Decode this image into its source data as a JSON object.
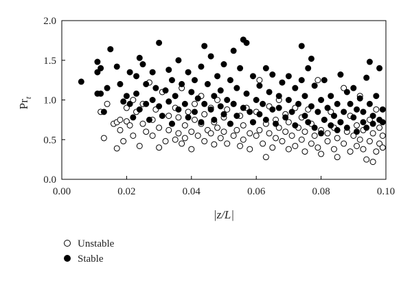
{
  "chart_data": {
    "type": "scatter",
    "title": "",
    "xlabel": "|z/L|",
    "ylabel": "Pr",
    "ylabel_sub": "t",
    "xlim": [
      0.0,
      0.1
    ],
    "ylim": [
      0.0,
      2.0
    ],
    "x_ticks": [
      0.0,
      0.02,
      0.04,
      0.06,
      0.08,
      0.1
    ],
    "x_tick_labels": [
      "0.00",
      "0.02",
      "0.04",
      "0.06",
      "0.08",
      "0.10"
    ],
    "y_ticks": [
      0.0,
      0.5,
      1.0,
      1.5,
      2.0
    ],
    "y_tick_labels": [
      "0.0",
      "0.5",
      "1.0",
      "1.5",
      "2.0"
    ],
    "grid": false,
    "legend_position": "below",
    "series": [
      {
        "name": "Unstable",
        "marker": "open-circle",
        "color": "#000000",
        "points": [
          [
            0.012,
            0.85
          ],
          [
            0.013,
            0.52
          ],
          [
            0.014,
            0.95
          ],
          [
            0.016,
            0.7
          ],
          [
            0.017,
            0.72
          ],
          [
            0.017,
            0.39
          ],
          [
            0.018,
            0.62
          ],
          [
            0.018,
            0.75
          ],
          [
            0.019,
            0.48
          ],
          [
            0.02,
            0.73
          ],
          [
            0.02,
            0.9
          ],
          [
            0.021,
            0.68
          ],
          [
            0.022,
            1.0
          ],
          [
            0.022,
            0.55
          ],
          [
            0.023,
            0.85
          ],
          [
            0.024,
            0.42
          ],
          [
            0.025,
            0.7
          ],
          [
            0.025,
            0.95
          ],
          [
            0.026,
            0.6
          ],
          [
            0.027,
            1.22
          ],
          [
            0.028,
            0.75
          ],
          [
            0.028,
            0.55
          ],
          [
            0.029,
            0.88
          ],
          [
            0.03,
            0.65
          ],
          [
            0.03,
            0.4
          ],
          [
            0.031,
            1.1
          ],
          [
            0.032,
            0.48
          ],
          [
            0.033,
            0.8
          ],
          [
            0.033,
            0.62
          ],
          [
            0.034,
            0.7
          ],
          [
            0.035,
            0.9
          ],
          [
            0.035,
            0.5
          ],
          [
            0.036,
            0.58
          ],
          [
            0.036,
            0.78
          ],
          [
            0.037,
            0.45
          ],
          [
            0.037,
            1.15
          ],
          [
            0.038,
            0.68
          ],
          [
            0.038,
            0.52
          ],
          [
            0.039,
            0.85
          ],
          [
            0.04,
            0.6
          ],
          [
            0.04,
            0.38
          ],
          [
            0.041,
            0.75
          ],
          [
            0.041,
            0.95
          ],
          [
            0.042,
            0.55
          ],
          [
            0.043,
            0.7
          ],
          [
            0.043,
            1.05
          ],
          [
            0.044,
            0.48
          ],
          [
            0.044,
            0.82
          ],
          [
            0.045,
            0.62
          ],
          [
            0.046,
            0.58
          ],
          [
            0.046,
            0.9
          ],
          [
            0.047,
            0.72
          ],
          [
            0.047,
            0.44
          ],
          [
            0.048,
            0.65
          ],
          [
            0.048,
            1.0
          ],
          [
            0.049,
            0.52
          ],
          [
            0.05,
            0.78
          ],
          [
            0.05,
            0.6
          ],
          [
            0.051,
            0.88
          ],
          [
            0.051,
            0.45
          ],
          [
            0.052,
            0.7
          ],
          [
            0.053,
            0.55
          ],
          [
            0.053,
            0.95
          ],
          [
            0.054,
            0.62
          ],
          [
            0.055,
            0.42
          ],
          [
            0.055,
            0.8
          ],
          [
            0.056,
            0.68
          ],
          [
            0.056,
            0.5
          ],
          [
            0.057,
            0.9
          ],
          [
            0.058,
            0.58
          ],
          [
            0.058,
            0.38
          ],
          [
            0.059,
            0.72
          ],
          [
            0.06,
            0.55
          ],
          [
            0.06,
            0.85
          ],
          [
            0.061,
            1.25
          ],
          [
            0.061,
            0.62
          ],
          [
            0.062,
            0.45
          ],
          [
            0.063,
            0.7
          ],
          [
            0.063,
            0.28
          ],
          [
            0.064,
            0.92
          ],
          [
            0.064,
            0.58
          ],
          [
            0.065,
            0.4
          ],
          [
            0.066,
            0.75
          ],
          [
            0.066,
            0.52
          ],
          [
            0.067,
            0.65
          ],
          [
            0.067,
            1.0
          ],
          [
            0.068,
            0.48
          ],
          [
            0.069,
            0.82
          ],
          [
            0.069,
            0.6
          ],
          [
            0.07,
            0.38
          ],
          [
            0.07,
            0.72
          ],
          [
            0.071,
            0.55
          ],
          [
            0.072,
            0.9
          ],
          [
            0.072,
            0.42
          ],
          [
            0.073,
            0.65
          ],
          [
            0.074,
            0.5
          ],
          [
            0.074,
            0.78
          ],
          [
            0.075,
            0.35
          ],
          [
            0.075,
            0.6
          ],
          [
            0.076,
            0.88
          ],
          [
            0.077,
            0.45
          ],
          [
            0.077,
            0.7
          ],
          [
            0.078,
            0.55
          ],
          [
            0.079,
            1.25
          ],
          [
            0.079,
            0.4
          ],
          [
            0.08,
            0.62
          ],
          [
            0.08,
            0.32
          ],
          [
            0.081,
            0.75
          ],
          [
            0.082,
            0.48
          ],
          [
            0.082,
            0.58
          ],
          [
            0.083,
            0.85
          ],
          [
            0.084,
            0.38
          ],
          [
            0.084,
            0.65
          ],
          [
            0.085,
            0.52
          ],
          [
            0.085,
            0.28
          ],
          [
            0.086,
            0.72
          ],
          [
            0.087,
            0.45
          ],
          [
            0.087,
            1.15
          ],
          [
            0.088,
            0.6
          ],
          [
            0.089,
            0.35
          ],
          [
            0.089,
            0.8
          ],
          [
            0.09,
            0.55
          ],
          [
            0.091,
            0.42
          ],
          [
            0.091,
            0.68
          ],
          [
            0.092,
            1.05
          ],
          [
            0.092,
            0.5
          ],
          [
            0.093,
            0.38
          ],
          [
            0.093,
            0.62
          ],
          [
            0.094,
            0.25
          ],
          [
            0.095,
            0.75
          ],
          [
            0.095,
            0.48
          ],
          [
            0.096,
            0.22
          ],
          [
            0.096,
            0.58
          ],
          [
            0.097,
            0.88
          ],
          [
            0.097,
            0.35
          ],
          [
            0.098,
            0.65
          ],
          [
            0.098,
            0.45
          ],
          [
            0.099,
            0.55
          ],
          [
            0.099,
            0.4
          ]
        ]
      },
      {
        "name": "Stable",
        "marker": "filled-circle",
        "color": "#000000",
        "points": [
          [
            0.006,
            1.23
          ],
          [
            0.011,
            1.48
          ],
          [
            0.011,
            1.35
          ],
          [
            0.011,
            1.08
          ],
          [
            0.012,
            1.4
          ],
          [
            0.012,
            1.08
          ],
          [
            0.013,
            0.85
          ],
          [
            0.014,
            1.15
          ],
          [
            0.015,
            1.64
          ],
          [
            0.017,
            1.42
          ],
          [
            0.018,
            1.2
          ],
          [
            0.019,
            0.98
          ],
          [
            0.02,
            1.05
          ],
          [
            0.021,
            1.35
          ],
          [
            0.021,
            0.95
          ],
          [
            0.022,
            0.78
          ],
          [
            0.023,
            1.3
          ],
          [
            0.023,
            1.08
          ],
          [
            0.024,
            1.53
          ],
          [
            0.024,
            0.88
          ],
          [
            0.025,
            1.45
          ],
          [
            0.026,
            1.2
          ],
          [
            0.026,
            0.95
          ],
          [
            0.027,
            0.75
          ],
          [
            0.028,
            1.35
          ],
          [
            0.028,
            1.0
          ],
          [
            0.029,
            1.15
          ],
          [
            0.03,
            1.72
          ],
          [
            0.03,
            0.92
          ],
          [
            0.031,
            0.8
          ],
          [
            0.032,
            1.12
          ],
          [
            0.033,
            1.38
          ],
          [
            0.033,
            0.98
          ],
          [
            0.034,
            1.25
          ],
          [
            0.034,
            0.7
          ],
          [
            0.035,
            1.05
          ],
          [
            0.036,
            1.5
          ],
          [
            0.036,
            0.88
          ],
          [
            0.037,
            1.2
          ],
          [
            0.038,
            0.95
          ],
          [
            0.039,
            1.35
          ],
          [
            0.039,
            0.78
          ],
          [
            0.04,
            1.1
          ],
          [
            0.041,
            1.25
          ],
          [
            0.041,
            0.85
          ],
          [
            0.042,
            1.02
          ],
          [
            0.043,
            1.42
          ],
          [
            0.043,
            0.72
          ],
          [
            0.044,
            1.68
          ],
          [
            0.044,
            0.95
          ],
          [
            0.045,
            1.2
          ],
          [
            0.046,
            0.88
          ],
          [
            0.046,
            1.55
          ],
          [
            0.047,
            1.05
          ],
          [
            0.047,
            0.75
          ],
          [
            0.048,
            1.3
          ],
          [
            0.049,
            0.92
          ],
          [
            0.049,
            1.12
          ],
          [
            0.05,
            1.45
          ],
          [
            0.05,
            0.82
          ],
          [
            0.051,
            1.0
          ],
          [
            0.052,
            1.25
          ],
          [
            0.052,
            0.7
          ],
          [
            0.053,
            1.62
          ],
          [
            0.053,
            0.95
          ],
          [
            0.054,
            1.15
          ],
          [
            0.054,
            0.8
          ],
          [
            0.055,
            1.4
          ],
          [
            0.056,
            1.76
          ],
          [
            0.056,
            0.9
          ],
          [
            0.057,
            1.08
          ],
          [
            0.057,
            1.72
          ],
          [
            0.058,
            0.85
          ],
          [
            0.059,
            1.3
          ],
          [
            0.059,
            0.72
          ],
          [
            0.06,
            1.0
          ],
          [
            0.061,
            1.18
          ],
          [
            0.061,
            0.82
          ],
          [
            0.062,
            0.95
          ],
          [
            0.063,
            1.4
          ],
          [
            0.063,
            0.75
          ],
          [
            0.064,
            1.1
          ],
          [
            0.065,
            0.88
          ],
          [
            0.065,
            1.32
          ],
          [
            0.066,
            0.7
          ],
          [
            0.067,
            1.05
          ],
          [
            0.067,
            0.9
          ],
          [
            0.068,
            1.22
          ],
          [
            0.069,
            0.78
          ],
          [
            0.07,
            1.0
          ],
          [
            0.07,
            1.3
          ],
          [
            0.071,
            0.85
          ],
          [
            0.072,
            1.15
          ],
          [
            0.072,
            0.68
          ],
          [
            0.073,
            0.95
          ],
          [
            0.074,
            1.68
          ],
          [
            0.074,
            1.25
          ],
          [
            0.075,
            0.8
          ],
          [
            0.075,
            1.05
          ],
          [
            0.076,
            1.4
          ],
          [
            0.076,
            0.72
          ],
          [
            0.077,
            0.92
          ],
          [
            0.077,
            1.52
          ],
          [
            0.078,
            1.18
          ],
          [
            0.078,
            0.65
          ],
          [
            0.079,
            0.85
          ],
          [
            0.08,
            1.0
          ],
          [
            0.08,
            0.58
          ],
          [
            0.081,
            1.25
          ],
          [
            0.081,
            0.75
          ],
          [
            0.082,
            0.9
          ],
          [
            0.083,
            0.68
          ],
          [
            0.083,
            1.05
          ],
          [
            0.084,
            0.8
          ],
          [
            0.085,
            0.62
          ],
          [
            0.085,
            0.95
          ],
          [
            0.086,
            1.32
          ],
          [
            0.086,
            0.72
          ],
          [
            0.087,
            0.85
          ],
          [
            0.088,
            1.1
          ],
          [
            0.088,
            0.65
          ],
          [
            0.089,
            0.95
          ],
          [
            0.09,
            0.78
          ],
          [
            0.09,
            1.15
          ],
          [
            0.091,
            0.88
          ],
          [
            0.091,
            0.6
          ],
          [
            0.092,
            1.02
          ],
          [
            0.093,
            0.72
          ],
          [
            0.093,
            0.85
          ],
          [
            0.094,
            1.28
          ],
          [
            0.094,
            0.65
          ],
          [
            0.095,
            0.95
          ],
          [
            0.095,
            1.48
          ],
          [
            0.096,
            0.8
          ],
          [
            0.096,
            0.7
          ],
          [
            0.097,
            1.05
          ],
          [
            0.098,
            0.75
          ],
          [
            0.098,
            1.4
          ],
          [
            0.099,
            0.88
          ],
          [
            0.099,
            0.72
          ]
        ]
      }
    ]
  }
}
